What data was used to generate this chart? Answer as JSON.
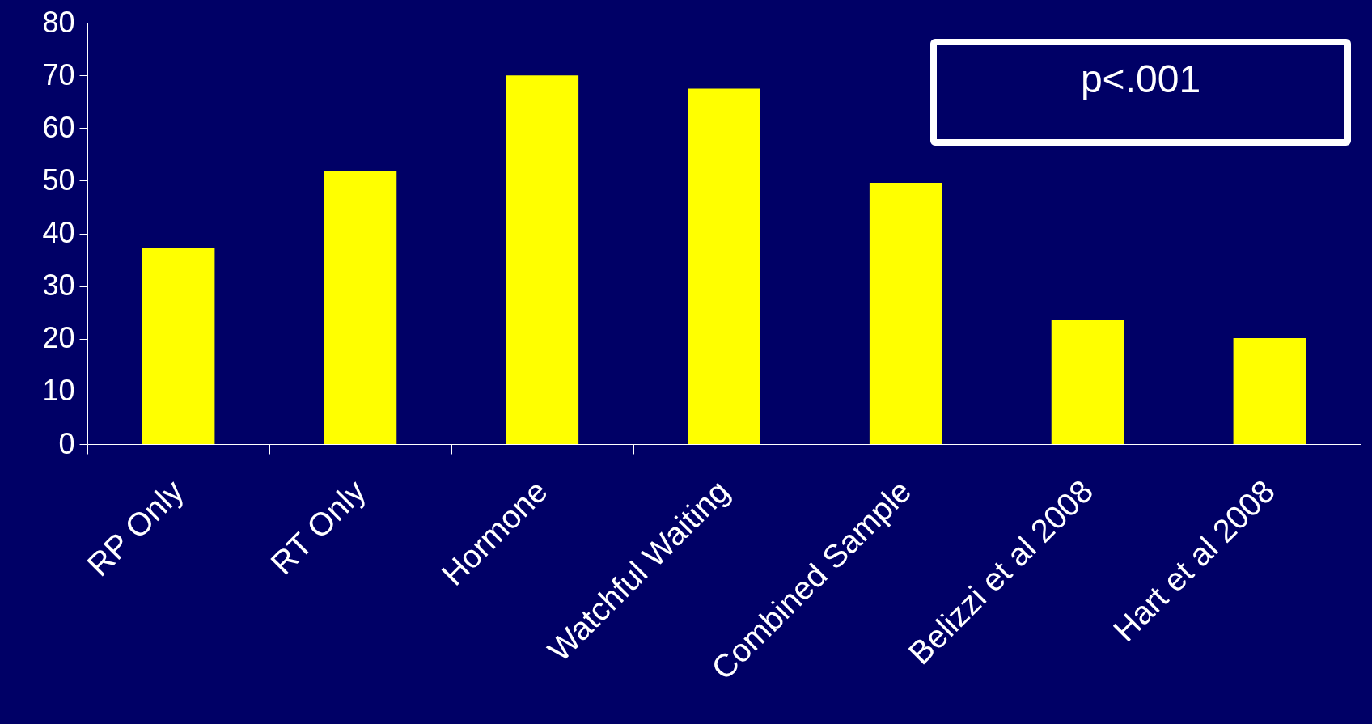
{
  "chart_data": {
    "type": "bar",
    "categories": [
      "RP Only",
      "RT Only",
      "Hormone",
      "Watchful Waiting",
      "Combined Sample",
      "Belizzi et al 2008",
      "Hart et al 2008"
    ],
    "values": [
      37.3,
      51.9,
      70,
      67.5,
      49.6,
      23.5,
      20.1
    ],
    "color": "#ffff00",
    "ylim": [
      0,
      80
    ],
    "yticks": [
      0,
      10,
      20,
      30,
      40,
      50,
      60,
      70,
      80
    ],
    "grid": false,
    "annotations": [
      "p<.001"
    ]
  }
}
